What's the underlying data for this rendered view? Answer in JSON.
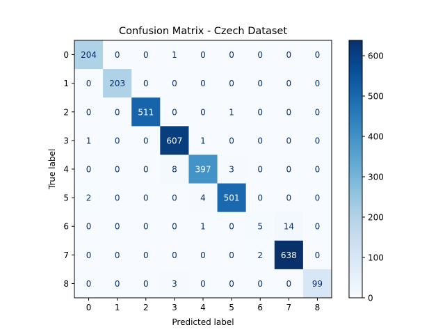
{
  "chart_data": {
    "type": "heatmap",
    "title": "Confusion Matrix - Czech Dataset",
    "xlabel": "Predicted label",
    "ylabel": "True label",
    "x_categories": [
      "0",
      "1",
      "2",
      "3",
      "4",
      "5",
      "6",
      "7",
      "8"
    ],
    "y_categories": [
      "0",
      "1",
      "2",
      "3",
      "4",
      "5",
      "6",
      "7",
      "8"
    ],
    "matrix": [
      [
        204,
        0,
        0,
        1,
        0,
        0,
        0,
        0,
        0
      ],
      [
        0,
        203,
        0,
        0,
        0,
        0,
        0,
        0,
        0
      ],
      [
        0,
        0,
        511,
        0,
        0,
        1,
        0,
        0,
        0
      ],
      [
        1,
        0,
        0,
        607,
        1,
        0,
        0,
        0,
        0
      ],
      [
        0,
        0,
        0,
        8,
        397,
        3,
        0,
        0,
        0
      ],
      [
        2,
        0,
        0,
        0,
        4,
        501,
        0,
        0,
        0
      ],
      [
        0,
        0,
        0,
        0,
        1,
        0,
        5,
        14,
        0
      ],
      [
        0,
        0,
        0,
        0,
        0,
        0,
        2,
        638,
        0
      ],
      [
        0,
        0,
        0,
        3,
        0,
        0,
        0,
        0,
        99
      ]
    ],
    "colormap": "Blues",
    "colorbar": {
      "range": [
        0,
        638
      ],
      "ticks": [
        0,
        100,
        200,
        300,
        400,
        500,
        600
      ]
    },
    "colors": {
      "low": "#f7fbff",
      "high": "#08306b",
      "text_dark": "#08306b",
      "text_light": "#ffffff"
    }
  }
}
